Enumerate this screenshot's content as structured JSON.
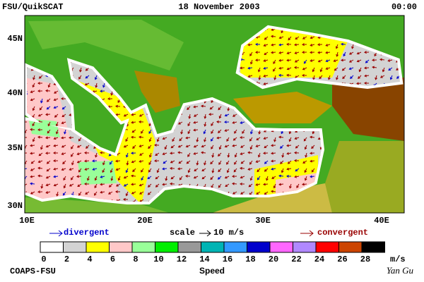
{
  "header": {
    "left": "FSU/QuikSCAT",
    "date": "18 November 2003",
    "time": "00:00"
  },
  "map": {
    "lat_labels": [
      "45N",
      "40N",
      "35N",
      "30N"
    ],
    "lon_labels": [
      "10E",
      "20E",
      "30E",
      "40E"
    ]
  },
  "legend": {
    "divergent": "divergent",
    "scale": "scale",
    "scale_value": "10 m/s",
    "convergent": "convergent"
  },
  "colorbar": {
    "ticks": [
      0,
      2,
      4,
      6,
      8,
      10,
      12,
      14,
      16,
      18,
      20,
      22,
      24,
      26,
      28
    ],
    "unit": "m/s",
    "title": "Speed",
    "colors": [
      "#ffffff",
      "#d3d3d3",
      "#ffff00",
      "#ffc8c8",
      "#99ff99",
      "#00ee00",
      "#999999",
      "#00b4b4",
      "#3399ff",
      "#0000cc",
      "#ff66ff",
      "#b088ff",
      "#ff0000",
      "#cc4400",
      "#000000"
    ]
  },
  "footer": {
    "left": "COAPS-FSU",
    "right": "Yan Gu"
  }
}
